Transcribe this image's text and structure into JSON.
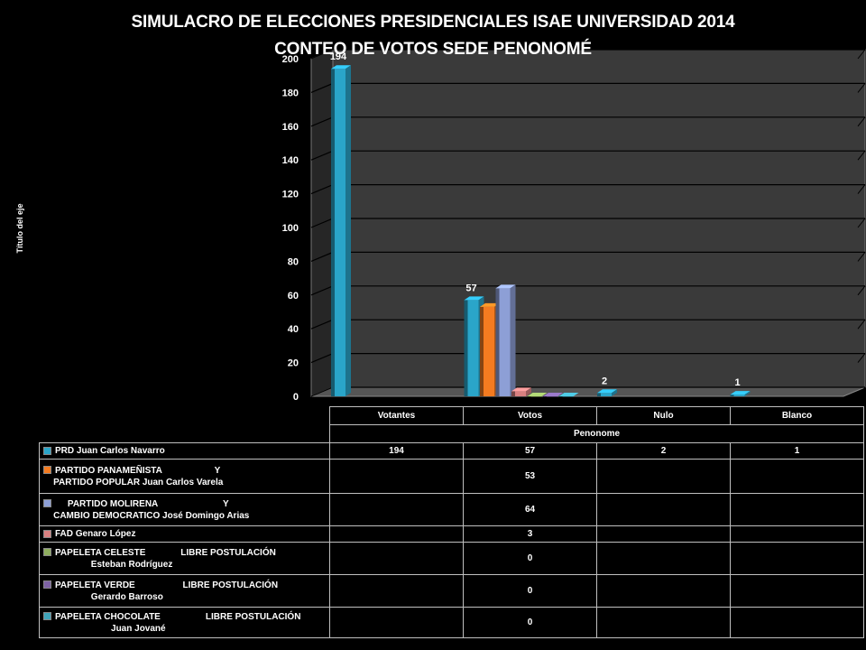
{
  "title_line1": "SIMULACRO DE ELECCIONES PRESIDENCIALES ISAE UNIVERSIDAD 2014",
  "title_line2": "CONTEO DE VOTOS SEDE PENONOMÉ",
  "chart_data": {
    "type": "bar",
    "title": "SIMULACRO DE ELECCIONES PRESIDENCIALES ISAE UNIVERSIDAD 2014 CONTEO DE VOTOS SEDE PENONOMÉ",
    "ylabel": "Título del eje",
    "xlabel": "Penonome",
    "ylim": [
      0,
      200
    ],
    "yticks": [
      0,
      20,
      40,
      60,
      80,
      100,
      120,
      140,
      160,
      180,
      200
    ],
    "categories": [
      "Votantes",
      "Votos",
      "Nulo",
      "Blanco"
    ],
    "grid": true,
    "legend": "data-table",
    "series": [
      {
        "name": "PRD Juan Carlos Navarro",
        "color": "#2aa5c9",
        "values": [
          194,
          57,
          2,
          1
        ]
      },
      {
        "name": "PARTIDO PANAMEÑISTA                     Y\n    PARTIDO POPULAR Juan Carlos Varela",
        "color": "#f47b20",
        "values": [
          null,
          53,
          null,
          null
        ]
      },
      {
        "name": "     PARTIDO MOLIRENA                          Y\n    CAMBIO DEMOCRATICO José Domingo Arias",
        "color": "#8d9fd6",
        "values": [
          null,
          64,
          null,
          null
        ]
      },
      {
        "name": "FAD Genaro López",
        "color": "#d98080",
        "values": [
          null,
          3,
          null,
          null
        ]
      },
      {
        "name": "PAPELETA CELESTE              LIBRE POSTULACIÓN\n                   Esteban Rodríguez",
        "color": "#8fae5f",
        "values": [
          null,
          0,
          null,
          null
        ]
      },
      {
        "name": "PAPELETA VERDE                   LIBRE POSTULACIÓN\n                   Gerardo Barroso",
        "color": "#7d62a3",
        "values": [
          null,
          0,
          null,
          null
        ]
      },
      {
        "name": "PAPELETA CHOCOLATE                  LIBRE POSTULACIÓN\n                           Juan Jované",
        "color": "#3fa3b8",
        "values": [
          null,
          0,
          null,
          null
        ]
      }
    ],
    "data_labels": [
      {
        "category": "Votantes",
        "text": "194"
      },
      {
        "category": "Votos",
        "text": "57"
      },
      {
        "category": "Nulo",
        "text": "2"
      },
      {
        "category": "Blanco",
        "text": "1"
      }
    ]
  }
}
